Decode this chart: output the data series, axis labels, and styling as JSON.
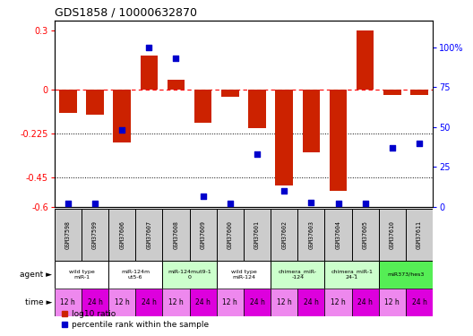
{
  "title": "GDS1858 / 10000632870",
  "samples": [
    "GSM37598",
    "GSM37599",
    "GSM37606",
    "GSM37607",
    "GSM37608",
    "GSM37609",
    "GSM37600",
    "GSM37601",
    "GSM37602",
    "GSM37603",
    "GSM37604",
    "GSM37605",
    "GSM37610",
    "GSM37611"
  ],
  "log10_ratio": [
    -0.12,
    -0.13,
    -0.27,
    0.17,
    0.05,
    -0.17,
    -0.04,
    -0.2,
    -0.49,
    -0.32,
    -0.52,
    0.3,
    -0.03,
    -0.03
  ],
  "percentile_rank": [
    2,
    2,
    48,
    100,
    93,
    7,
    2,
    33,
    10,
    3,
    2,
    2,
    37,
    40
  ],
  "ylim_left": [
    -0.6,
    0.35
  ],
  "ylim_right": [
    0,
    116.67
  ],
  "yticks_left": [
    0.3,
    0.0,
    -0.225,
    -0.45,
    -0.6
  ],
  "yticks_right": [
    100,
    75,
    50,
    25,
    0
  ],
  "hlines": [
    -0.225,
    -0.45
  ],
  "agent_groups": [
    {
      "label": "wild type\nmiR-1",
      "cols": [
        0,
        1
      ],
      "color": "#ffffff"
    },
    {
      "label": "miR-124m\nut5-6",
      "cols": [
        2,
        3
      ],
      "color": "#ffffff"
    },
    {
      "label": "miR-124mut9-1\n0",
      "cols": [
        4,
        5
      ],
      "color": "#ccffcc"
    },
    {
      "label": "wild type\nmiR-124",
      "cols": [
        6,
        7
      ],
      "color": "#ffffff"
    },
    {
      "label": "chimera_miR-\n-124",
      "cols": [
        8,
        9
      ],
      "color": "#ccffcc"
    },
    {
      "label": "chimera_miR-1\n24-1",
      "cols": [
        10,
        11
      ],
      "color": "#ccffcc"
    },
    {
      "label": "miR373/hes3",
      "cols": [
        12,
        13
      ],
      "color": "#55ee55"
    }
  ],
  "time_labels": [
    "12 h",
    "24 h",
    "12 h",
    "24 h",
    "12 h",
    "24 h",
    "12 h",
    "24 h",
    "12 h",
    "24 h",
    "12 h",
    "24 h",
    "12 h",
    "24 h"
  ],
  "time_colors_alt": [
    "#ee88ee",
    "#dd00dd"
  ],
  "bar_color": "#cc2200",
  "dot_color": "#0000cc",
  "background_color": "#ffffff"
}
